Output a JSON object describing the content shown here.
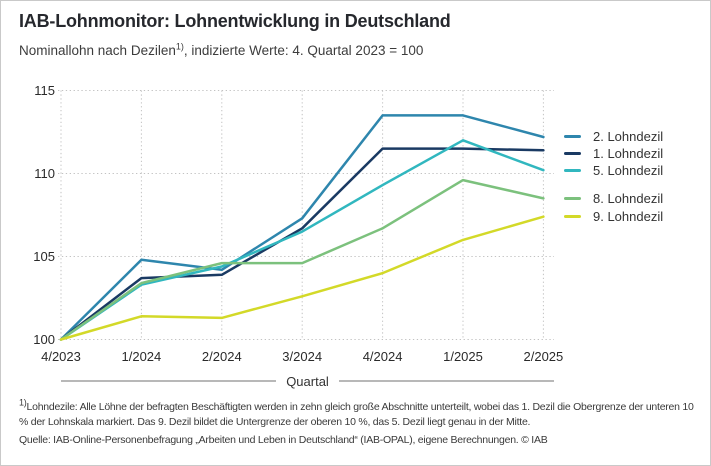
{
  "header": {
    "title": "IAB-Lohnmonitor: Lohnentwicklung in Deutschland",
    "subtitle_pre": "Nominallohn nach Dezilen",
    "subtitle_sup": "1)",
    "subtitle_post": ", indizierte Werte: 4. Quartal 2023 = 100"
  },
  "chart_data": {
    "type": "line",
    "title": "IAB-Lohnmonitor: Lohnentwicklung in Deutschland",
    "subtitle": "Nominallohn nach Dezilen 1), indizierte Werte: 4. Quartal 2023 = 100",
    "xlabel": "Quartal",
    "ylabel": "",
    "categories": [
      "4/2023",
      "1/2024",
      "2/2024",
      "3/2024",
      "4/2024",
      "1/2025",
      "2/2025"
    ],
    "yticks": [
      115,
      110,
      105,
      100
    ],
    "ylim": [
      100,
      115
    ],
    "grid": true,
    "grid_style": "dotted",
    "legend_position": "right",
    "series": [
      {
        "name": "2. Lohndezil",
        "color": "#2e86ad",
        "values": [
          100,
          104.8,
          104.2,
          107.3,
          113.5,
          113.5,
          112.2
        ]
      },
      {
        "name": "1. Lohndezil",
        "color": "#1a3a63",
        "values": [
          100,
          103.7,
          103.9,
          106.7,
          111.5,
          111.5,
          111.4
        ]
      },
      {
        "name": "5. Lohndezil",
        "color": "#31b7bf",
        "values": [
          100,
          103.3,
          104.4,
          106.5,
          109.3,
          112.0,
          110.2
        ]
      },
      {
        "name": "8. Lohndezil",
        "color": "#7cc17d",
        "values": [
          100,
          103.4,
          104.6,
          104.6,
          106.7,
          109.6,
          108.5
        ]
      },
      {
        "name": "9. Lohndezil",
        "color": "#d3d928",
        "values": [
          100,
          101.4,
          101.3,
          102.6,
          104.0,
          106.0,
          107.4
        ]
      }
    ]
  },
  "footnote": {
    "marker": "1)",
    "text": "Lohndezile: Alle Löhne der befragten Beschäftigten werden in zehn gleich große Abschnitte unterteilt, wobei das 1. Dezil die Obergrenze der unteren 10 % der Lohnskala markiert. Das 9. Dezil bildet die Untergrenze der oberen 10 %, das 5. Dezil liegt genau in der Mitte."
  },
  "source": {
    "text": "Quelle: IAB-Online-Personenbefragung „Arbeiten und Leben in Deutschland“ (IAB-OPAL), eigene Berechnungen. © IAB"
  }
}
